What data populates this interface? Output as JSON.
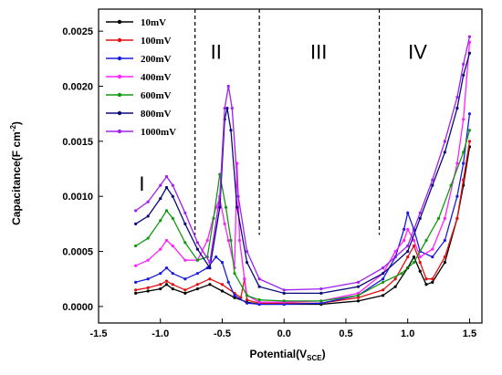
{
  "chart_data": {
    "type": "line",
    "xlabel_main": "Potential(V",
    "xlabel_sub": "SCE",
    "xlabel_end": ")",
    "ylabel_main": "Capacitance(F cm",
    "ylabel_sup": "-2",
    "ylabel_end": ")",
    "xlim": [
      -1.5,
      1.6
    ],
    "ylim": [
      -0.00015,
      0.0027
    ],
    "xticks": [
      "-1.5",
      "-1.0",
      "-0.5",
      "0.0",
      "0.5",
      "1.0",
      "1.5"
    ],
    "yticks": [
      "0.0000",
      "0.0005",
      "0.0010",
      "0.0015",
      "0.0020",
      "0.0025"
    ],
    "region_dividers": [
      -0.72,
      -0.2,
      0.77
    ],
    "regions": [
      {
        "label": "I",
        "x": -1.15,
        "y": 0.00105
      },
      {
        "label": "II",
        "x": -0.55,
        "y": 0.00225
      },
      {
        "label": "III",
        "x": 0.28,
        "y": 0.00225
      },
      {
        "label": "IV",
        "x": 1.08,
        "y": 0.00225
      }
    ],
    "legend_position": "top-left",
    "series": [
      {
        "name": "10mV",
        "color": "#000000",
        "points": [
          [
            -1.2,
            0.00012
          ],
          [
            -1.1,
            0.00014
          ],
          [
            -1.0,
            0.00016
          ],
          [
            -0.95,
            0.0002
          ],
          [
            -0.9,
            0.00016
          ],
          [
            -0.8,
            0.00012
          ],
          [
            -0.7,
            0.00016
          ],
          [
            -0.6,
            0.0002
          ],
          [
            -0.5,
            0.00014
          ],
          [
            -0.4,
            8e-05
          ],
          [
            -0.3,
            4e-05
          ],
          [
            -0.2,
            2e-05
          ],
          [
            0.0,
            2e-05
          ],
          [
            0.3,
            2e-05
          ],
          [
            0.6,
            5e-05
          ],
          [
            0.8,
            0.0001
          ],
          [
            0.9,
            0.00018
          ],
          [
            1.0,
            0.00035
          ],
          [
            1.05,
            0.00045
          ],
          [
            1.1,
            0.00032
          ],
          [
            1.15,
            0.0002
          ],
          [
            1.2,
            0.00022
          ],
          [
            1.3,
            0.0004
          ],
          [
            1.4,
            0.0008
          ],
          [
            1.45,
            0.0011
          ],
          [
            1.5,
            0.00145
          ]
        ]
      },
      {
        "name": "100mV",
        "color": "#e01010",
        "points": [
          [
            -1.2,
            0.00015
          ],
          [
            -1.1,
            0.00017
          ],
          [
            -1.0,
            0.0002
          ],
          [
            -0.95,
            0.00023
          ],
          [
            -0.9,
            0.0002
          ],
          [
            -0.8,
            0.00015
          ],
          [
            -0.7,
            0.0002
          ],
          [
            -0.6,
            0.00025
          ],
          [
            -0.5,
            0.0002
          ],
          [
            -0.4,
            0.00012
          ],
          [
            -0.35,
            8e-05
          ],
          [
            -0.32,
            0.00025
          ],
          [
            -0.3,
            6e-05
          ],
          [
            -0.2,
            3e-05
          ],
          [
            0.0,
            3e-05
          ],
          [
            0.3,
            3e-05
          ],
          [
            0.6,
            8e-05
          ],
          [
            0.8,
            0.00015
          ],
          [
            0.9,
            0.00025
          ],
          [
            1.0,
            0.00045
          ],
          [
            1.05,
            0.00055
          ],
          [
            1.1,
            0.0004
          ],
          [
            1.15,
            0.00025
          ],
          [
            1.2,
            0.00025
          ],
          [
            1.3,
            0.00045
          ],
          [
            1.4,
            0.0008
          ],
          [
            1.45,
            0.00115
          ],
          [
            1.5,
            0.0015
          ]
        ]
      },
      {
        "name": "200mV",
        "color": "#1a1ae0",
        "points": [
          [
            -1.2,
            0.00022
          ],
          [
            -1.1,
            0.00025
          ],
          [
            -1.0,
            0.0003
          ],
          [
            -0.95,
            0.00035
          ],
          [
            -0.9,
            0.0003
          ],
          [
            -0.8,
            0.00025
          ],
          [
            -0.7,
            0.0003
          ],
          [
            -0.62,
            0.00035
          ],
          [
            -0.55,
            0.00045
          ],
          [
            -0.5,
            0.0004
          ],
          [
            -0.45,
            0.00022
          ],
          [
            -0.4,
            0.0001
          ],
          [
            -0.3,
            3e-05
          ],
          [
            -0.2,
            2e-05
          ],
          [
            0.0,
            2e-05
          ],
          [
            0.3,
            3e-05
          ],
          [
            0.6,
            0.0001
          ],
          [
            0.8,
            0.00025
          ],
          [
            0.9,
            0.00045
          ],
          [
            0.97,
            0.0007
          ],
          [
            1.0,
            0.00085
          ],
          [
            1.05,
            0.0007
          ],
          [
            1.1,
            0.0005
          ],
          [
            1.2,
            0.00045
          ],
          [
            1.3,
            0.0006
          ],
          [
            1.4,
            0.001
          ],
          [
            1.45,
            0.0013
          ],
          [
            1.5,
            0.00175
          ]
        ]
      },
      {
        "name": "400mV",
        "color": "#ff22ff",
        "points": [
          [
            -1.2,
            0.00037
          ],
          [
            -1.1,
            0.00042
          ],
          [
            -1.0,
            0.00052
          ],
          [
            -0.95,
            0.0006
          ],
          [
            -0.9,
            0.00055
          ],
          [
            -0.8,
            0.00042
          ],
          [
            -0.7,
            0.00042
          ],
          [
            -0.62,
            0.0006
          ],
          [
            -0.55,
            0.0009
          ],
          [
            -0.52,
            0.00098
          ],
          [
            -0.48,
            0.00075
          ],
          [
            -0.45,
            0.0006
          ],
          [
            -0.4,
            0.00035
          ],
          [
            -0.38,
            0.0013
          ],
          [
            -0.36,
            0.0006
          ],
          [
            -0.32,
            0.00025
          ],
          [
            -0.3,
            0.0001
          ],
          [
            -0.2,
            4e-05
          ],
          [
            0.0,
            4e-05
          ],
          [
            0.3,
            5e-05
          ],
          [
            0.6,
            0.00012
          ],
          [
            0.8,
            0.0003
          ],
          [
            0.9,
            0.0005
          ],
          [
            0.97,
            0.0006
          ],
          [
            1.0,
            0.0007
          ],
          [
            1.05,
            0.0006
          ],
          [
            1.1,
            0.00045
          ],
          [
            1.2,
            0.00052
          ],
          [
            1.3,
            0.0008
          ],
          [
            1.4,
            0.0013
          ],
          [
            1.45,
            0.0017
          ],
          [
            1.5,
            0.0024
          ]
        ]
      },
      {
        "name": "600mV",
        "color": "#119911",
        "points": [
          [
            -1.2,
            0.00055
          ],
          [
            -1.1,
            0.00062
          ],
          [
            -1.0,
            0.00078
          ],
          [
            -0.95,
            0.00087
          ],
          [
            -0.9,
            0.0008
          ],
          [
            -0.8,
            0.00058
          ],
          [
            -0.7,
            0.00042
          ],
          [
            -0.62,
            0.00045
          ],
          [
            -0.57,
            0.0008
          ],
          [
            -0.52,
            0.0012
          ],
          [
            -0.47,
            0.0009
          ],
          [
            -0.43,
            0.0006
          ],
          [
            -0.4,
            0.0003
          ],
          [
            -0.3,
            0.0001
          ],
          [
            -0.2,
            6e-05
          ],
          [
            0.0,
            5e-05
          ],
          [
            0.3,
            5e-05
          ],
          [
            0.6,
            0.0001
          ],
          [
            0.8,
            0.00022
          ],
          [
            0.95,
            0.0003
          ],
          [
            1.05,
            0.0004
          ],
          [
            1.15,
            0.0006
          ],
          [
            1.25,
            0.0008
          ],
          [
            1.35,
            0.0011
          ],
          [
            1.45,
            0.0014
          ],
          [
            1.5,
            0.0016
          ]
        ]
      },
      {
        "name": "800mV",
        "color": "#0a0a7a",
        "points": [
          [
            -1.2,
            0.00075
          ],
          [
            -1.1,
            0.00082
          ],
          [
            -1.0,
            0.00098
          ],
          [
            -0.95,
            0.00108
          ],
          [
            -0.9,
            0.001
          ],
          [
            -0.8,
            0.00075
          ],
          [
            -0.7,
            0.00052
          ],
          [
            -0.6,
            0.00035
          ],
          [
            -0.52,
            0.0009
          ],
          [
            -0.48,
            0.0017
          ],
          [
            -0.46,
            0.0018
          ],
          [
            -0.43,
            0.0016
          ],
          [
            -0.38,
            0.0009
          ],
          [
            -0.3,
            0.0004
          ],
          [
            -0.2,
            0.00018
          ],
          [
            0.0,
            0.00012
          ],
          [
            0.3,
            0.00012
          ],
          [
            0.6,
            0.00018
          ],
          [
            0.8,
            0.0003
          ],
          [
            1.0,
            0.0005
          ],
          [
            1.1,
            0.0008
          ],
          [
            1.2,
            0.0011
          ],
          [
            1.3,
            0.0014
          ],
          [
            1.4,
            0.0018
          ],
          [
            1.45,
            0.0021
          ],
          [
            1.5,
            0.0023
          ]
        ]
      },
      {
        "name": "1000mV",
        "color": "#a020f0",
        "points": [
          [
            -1.2,
            0.00087
          ],
          [
            -1.1,
            0.00095
          ],
          [
            -1.0,
            0.0011
          ],
          [
            -0.95,
            0.00118
          ],
          [
            -0.9,
            0.0011
          ],
          [
            -0.8,
            0.00085
          ],
          [
            -0.7,
            0.00058
          ],
          [
            -0.6,
            0.0004
          ],
          [
            -0.52,
            0.001
          ],
          [
            -0.48,
            0.0018
          ],
          [
            -0.45,
            0.002
          ],
          [
            -0.42,
            0.0018
          ],
          [
            -0.37,
            0.001
          ],
          [
            -0.3,
            0.0005
          ],
          [
            -0.2,
            0.00025
          ],
          [
            0.0,
            0.00015
          ],
          [
            0.3,
            0.00016
          ],
          [
            0.6,
            0.00022
          ],
          [
            0.8,
            0.00035
          ],
          [
            1.0,
            0.00055
          ],
          [
            1.1,
            0.00085
          ],
          [
            1.2,
            0.00115
          ],
          [
            1.3,
            0.0015
          ],
          [
            1.4,
            0.0019
          ],
          [
            1.45,
            0.0022
          ],
          [
            1.5,
            0.00245
          ]
        ]
      }
    ]
  }
}
